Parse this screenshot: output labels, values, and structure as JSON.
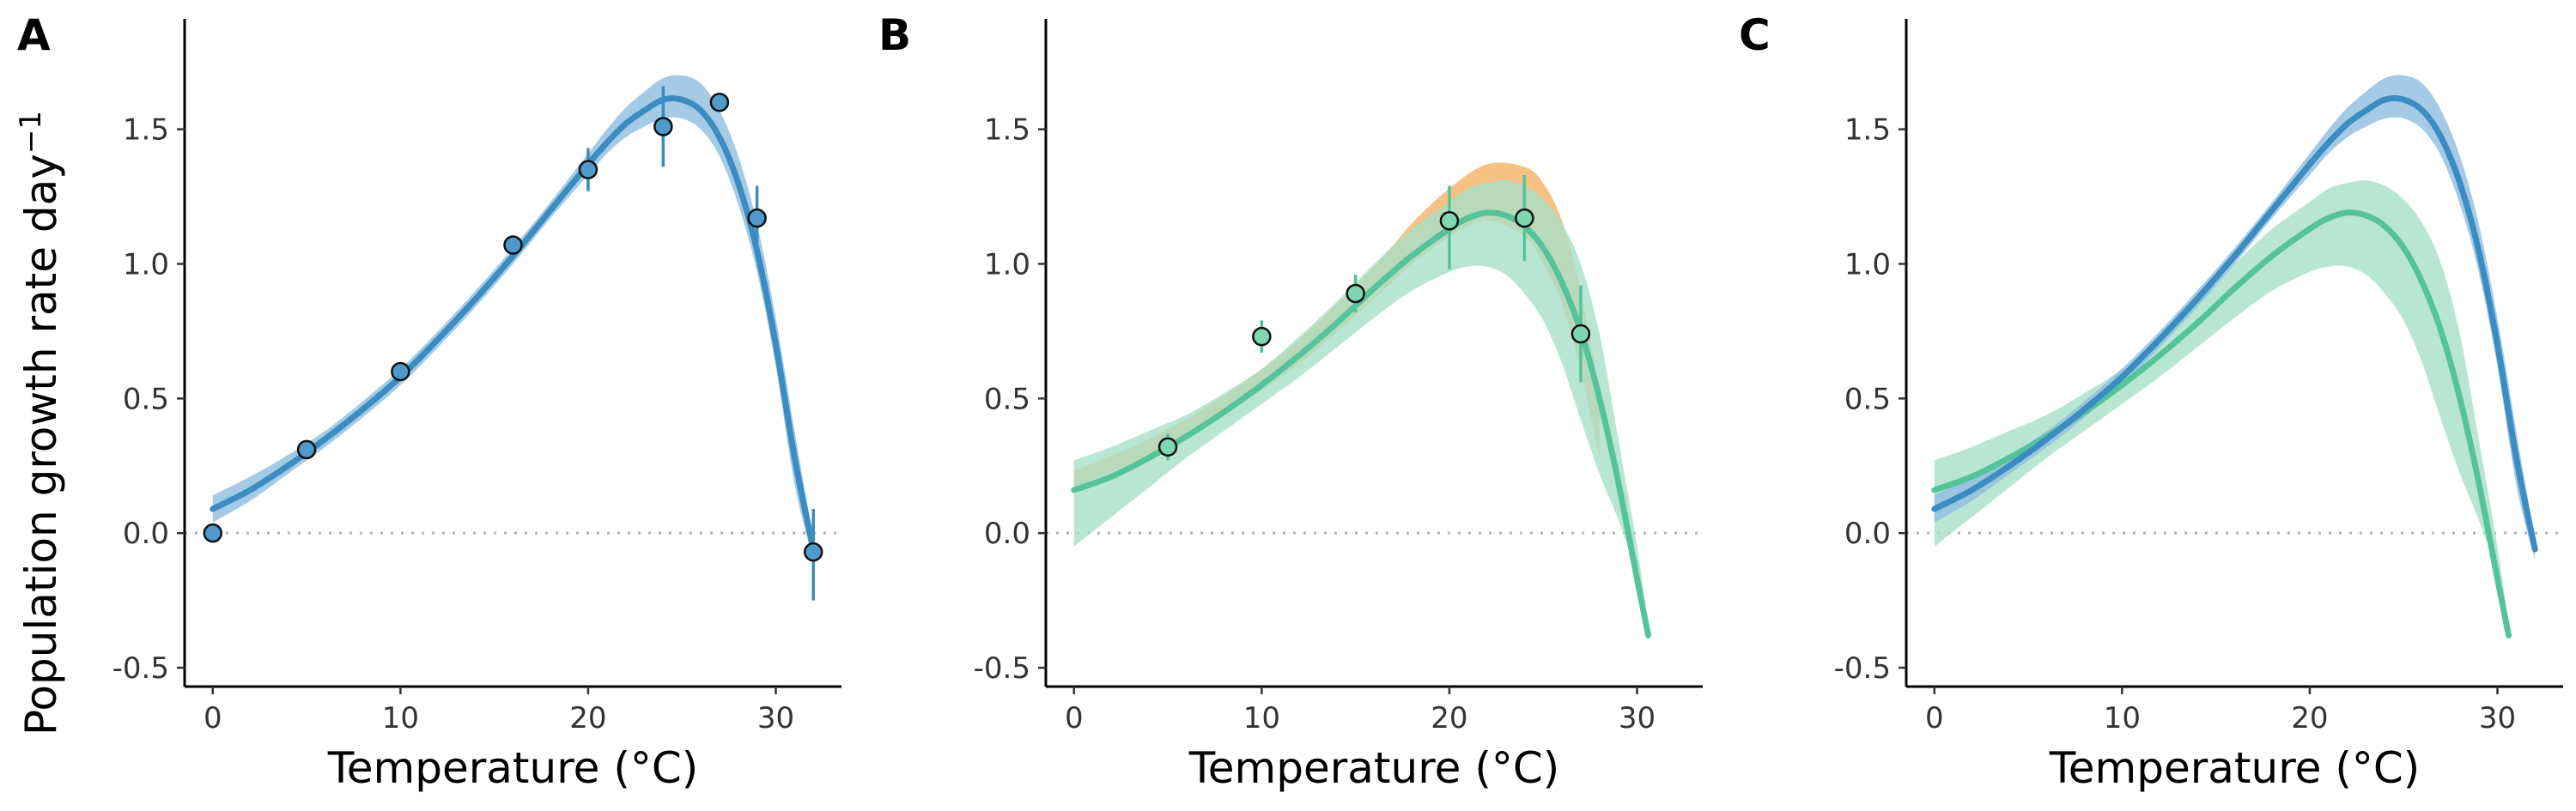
{
  "figure": {
    "ylabel": "Population growth rate day",
    "ylabel_superscript": "−1",
    "colors": {
      "blue": "#3a8cc1",
      "blue_band": "#8fbde0",
      "green": "#55c399",
      "green_band": "#a7e0c8",
      "orange_band": "#f6b66e",
      "zero_line": "#b3b3b3"
    }
  },
  "chart_data": [
    {
      "type": "line",
      "panel_label": "A",
      "xlabel": "Temperature (°C)",
      "xlim": [
        -1.5,
        33.5
      ],
      "ylim": [
        -0.57,
        1.91
      ],
      "xticks": [
        0,
        10,
        20,
        30
      ],
      "yticks": [
        -0.5,
        0.0,
        0.5,
        1.0,
        1.5
      ],
      "ytick_labels": [
        "-0.5",
        "0.0",
        "0.5",
        "1.0",
        "1.5"
      ],
      "xtick_labels": [
        "0",
        "10",
        "20",
        "30"
      ],
      "reference_line_y": 0,
      "series": [
        {
          "color": "#3a8cc1",
          "band_color": "#8fbde0",
          "curve": {
            "x": [
              0,
              2,
              4,
              6,
              8,
              10,
              12,
              14,
              16,
              18,
              20,
              21,
              22,
              23,
              24,
              25,
              26,
              27,
              28,
              29,
              30,
              31,
              32
            ],
            "y": [
              0.09,
              0.16,
              0.25,
              0.35,
              0.46,
              0.58,
              0.72,
              0.87,
              1.03,
              1.2,
              1.37,
              1.45,
              1.52,
              1.57,
              1.61,
              1.61,
              1.57,
              1.47,
              1.3,
              1.05,
              0.7,
              0.28,
              -0.06
            ],
            "lower": [
              0.04,
              0.12,
              0.22,
              0.32,
              0.43,
              0.55,
              0.69,
              0.84,
              1.0,
              1.17,
              1.33,
              1.41,
              1.47,
              1.51,
              1.54,
              1.54,
              1.5,
              1.4,
              1.22,
              0.97,
              0.62,
              0.18,
              -0.1
            ],
            "upper": [
              0.14,
              0.21,
              0.29,
              0.38,
              0.49,
              0.61,
              0.75,
              0.9,
              1.06,
              1.23,
              1.41,
              1.5,
              1.58,
              1.64,
              1.69,
              1.7,
              1.67,
              1.57,
              1.4,
              1.15,
              0.8,
              0.38,
              -0.02
            ]
          },
          "points": [
            {
              "x": 0,
              "y": 0.0,
              "lo": -0.03,
              "hi": 0.03
            },
            {
              "x": 5,
              "y": 0.31,
              "lo": 0.29,
              "hi": 0.33
            },
            {
              "x": 10,
              "y": 0.6,
              "lo": 0.58,
              "hi": 0.62
            },
            {
              "x": 16,
              "y": 1.07,
              "lo": 1.05,
              "hi": 1.09
            },
            {
              "x": 20,
              "y": 1.35,
              "lo": 1.27,
              "hi": 1.43
            },
            {
              "x": 24,
              "y": 1.51,
              "lo": 1.36,
              "hi": 1.66
            },
            {
              "x": 27,
              "y": 1.6,
              "lo": 1.58,
              "hi": 1.62
            },
            {
              "x": 29,
              "y": 1.17,
              "lo": 1.05,
              "hi": 1.29
            },
            {
              "x": 32,
              "y": -0.07,
              "lo": -0.25,
              "hi": 0.09
            }
          ]
        }
      ]
    },
    {
      "type": "line",
      "panel_label": "B",
      "xlabel": "Temperature (°C)",
      "xlim": [
        -1.5,
        33.5
      ],
      "ylim": [
        -0.57,
        1.91
      ],
      "xticks": [
        0,
        10,
        20,
        30
      ],
      "yticks": [
        -0.5,
        0.0,
        0.5,
        1.0,
        1.5
      ],
      "ytick_labels": [
        "-0.5",
        "0.0",
        "0.5",
        "1.0",
        "1.5"
      ],
      "xtick_labels": [
        "0",
        "10",
        "20",
        "30"
      ],
      "reference_line_y": 0,
      "series": [
        {
          "color": "#f6b66e",
          "band_color": "#f6b66e",
          "curve": {
            "x": [
              0,
              4,
              8,
              12,
              16,
              18,
              20,
              22,
              24,
              25,
              26,
              27,
              28
            ],
            "y": [
              0.2,
              0.32,
              0.47,
              0.67,
              0.93,
              1.07,
              1.19,
              1.26,
              1.23,
              1.15,
              1.0,
              0.75,
              0.4
            ],
            "lower": [
              0.17,
              0.29,
              0.44,
              0.63,
              0.87,
              1.0,
              1.1,
              1.16,
              1.1,
              1.0,
              0.85,
              0.6,
              0.28
            ],
            "upper": [
              0.23,
              0.35,
              0.51,
              0.72,
              0.99,
              1.15,
              1.28,
              1.37,
              1.36,
              1.3,
              1.16,
              0.9,
              0.52
            ]
          },
          "points": []
        },
        {
          "color": "#55c399",
          "band_color": "#a7e0c8",
          "curve": {
            "x": [
              0,
              2,
              4,
              6,
              8,
              10,
              12,
              14,
              16,
              18,
              20,
              21,
              22,
              23,
              24,
              25,
              26,
              27,
              28,
              29,
              30,
              30.6
            ],
            "y": [
              0.16,
              0.21,
              0.28,
              0.36,
              0.45,
              0.55,
              0.66,
              0.78,
              0.91,
              1.03,
              1.13,
              1.17,
              1.19,
              1.18,
              1.14,
              1.06,
              0.93,
              0.75,
              0.5,
              0.19,
              -0.17,
              -0.38
            ],
            "lower": [
              -0.05,
              0.06,
              0.17,
              0.28,
              0.38,
              0.48,
              0.58,
              0.69,
              0.8,
              0.9,
              0.97,
              0.99,
              0.99,
              0.96,
              0.89,
              0.79,
              0.63,
              0.42,
              0.22,
              0.05,
              -0.15,
              -0.35
            ],
            "upper": [
              0.27,
              0.32,
              0.38,
              0.44,
              0.52,
              0.61,
              0.73,
              0.86,
              1.0,
              1.13,
              1.23,
              1.28,
              1.3,
              1.31,
              1.29,
              1.24,
              1.15,
              1.0,
              0.74,
              0.35,
              -0.05,
              -0.34
            ]
          },
          "points": [
            {
              "x": 5,
              "y": 0.32,
              "lo": 0.27,
              "hi": 0.37
            },
            {
              "x": 10,
              "y": 0.73,
              "lo": 0.67,
              "hi": 0.79
            },
            {
              "x": 15,
              "y": 0.89,
              "lo": 0.82,
              "hi": 0.96
            },
            {
              "x": 20,
              "y": 1.16,
              "lo": 0.98,
              "hi": 1.29
            },
            {
              "x": 24,
              "y": 1.17,
              "lo": 1.01,
              "hi": 1.33
            },
            {
              "x": 27,
              "y": 0.74,
              "lo": 0.56,
              "hi": 0.92
            }
          ]
        }
      ]
    },
    {
      "type": "line",
      "panel_label": "C",
      "xlabel": "Temperature (°C)",
      "xlim": [
        -1.5,
        33.5
      ],
      "ylim": [
        -0.57,
        1.91
      ],
      "xticks": [
        0,
        10,
        20,
        30
      ],
      "yticks": [
        -0.5,
        0.0,
        0.5,
        1.0,
        1.5
      ],
      "ytick_labels": [
        "-0.5",
        "0.0",
        "0.5",
        "1.0",
        "1.5"
      ],
      "xtick_labels": [
        "0",
        "10",
        "20",
        "30"
      ],
      "reference_line_y": 0,
      "series": [
        {
          "color": "#55c399",
          "band_color": "#a7e0c8",
          "curve": {
            "x": [
              0,
              2,
              4,
              6,
              8,
              10,
              12,
              14,
              16,
              18,
              20,
              21,
              22,
              23,
              24,
              25,
              26,
              27,
              28,
              29,
              30,
              30.6
            ],
            "y": [
              0.16,
              0.21,
              0.28,
              0.36,
              0.45,
              0.55,
              0.66,
              0.78,
              0.91,
              1.03,
              1.13,
              1.17,
              1.19,
              1.18,
              1.14,
              1.06,
              0.93,
              0.75,
              0.5,
              0.19,
              -0.17,
              -0.38
            ],
            "lower": [
              -0.05,
              0.06,
              0.17,
              0.28,
              0.38,
              0.48,
              0.58,
              0.69,
              0.8,
              0.9,
              0.97,
              0.99,
              0.99,
              0.96,
              0.89,
              0.79,
              0.63,
              0.42,
              0.22,
              0.05,
              -0.15,
              -0.35
            ],
            "upper": [
              0.27,
              0.32,
              0.38,
              0.44,
              0.52,
              0.61,
              0.73,
              0.86,
              1.0,
              1.13,
              1.23,
              1.28,
              1.3,
              1.31,
              1.29,
              1.24,
              1.15,
              1.0,
              0.74,
              0.35,
              -0.05,
              -0.34
            ]
          },
          "points": []
        },
        {
          "color": "#3a8cc1",
          "band_color": "#8fbde0",
          "curve": {
            "x": [
              0,
              2,
              4,
              6,
              8,
              10,
              12,
              14,
              16,
              18,
              20,
              21,
              22,
              23,
              24,
              25,
              26,
              27,
              28,
              29,
              30,
              31,
              32
            ],
            "y": [
              0.09,
              0.16,
              0.25,
              0.35,
              0.46,
              0.58,
              0.72,
              0.87,
              1.03,
              1.2,
              1.37,
              1.45,
              1.52,
              1.57,
              1.61,
              1.61,
              1.57,
              1.47,
              1.3,
              1.05,
              0.7,
              0.28,
              -0.06
            ],
            "lower": [
              0.04,
              0.12,
              0.22,
              0.32,
              0.43,
              0.55,
              0.69,
              0.84,
              1.0,
              1.17,
              1.33,
              1.41,
              1.47,
              1.51,
              1.54,
              1.54,
              1.5,
              1.4,
              1.22,
              0.97,
              0.62,
              0.18,
              -0.1
            ],
            "upper": [
              0.14,
              0.21,
              0.29,
              0.38,
              0.49,
              0.61,
              0.75,
              0.9,
              1.06,
              1.23,
              1.41,
              1.5,
              1.58,
              1.64,
              1.69,
              1.7,
              1.67,
              1.57,
              1.4,
              1.15,
              0.8,
              0.38,
              -0.02
            ]
          },
          "points": []
        }
      ]
    }
  ]
}
